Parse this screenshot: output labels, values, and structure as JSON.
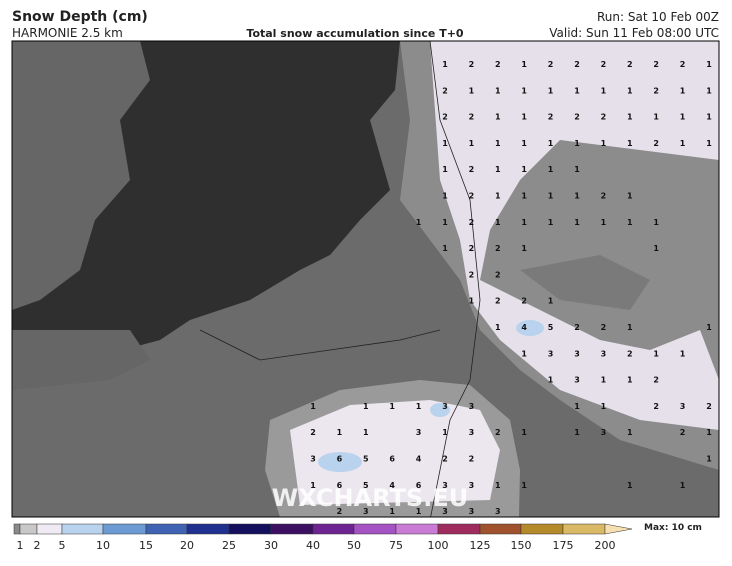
{
  "header": {
    "title": "Snow Depth (cm)",
    "model": "HARMONIE 2.5 km",
    "subtitle": "Total snow accumulation since T+0",
    "run": "Run: Sat 10 Feb 00Z",
    "valid": "Valid: Sun 11 Feb 08:00 UTC"
  },
  "map": {
    "watermark": "WXCHARTS.EU",
    "grid": [
      [
        null,
        null,
        null,
        null,
        null,
        1,
        2,
        2,
        1,
        2,
        2,
        2,
        2,
        2,
        2,
        1
      ],
      [
        null,
        null,
        null,
        null,
        null,
        2,
        1,
        1,
        1,
        1,
        1,
        1,
        1,
        2,
        1,
        1
      ],
      [
        null,
        null,
        null,
        null,
        null,
        2,
        2,
        1,
        1,
        2,
        2,
        2,
        1,
        1,
        1,
        1
      ],
      [
        null,
        null,
        null,
        null,
        null,
        1,
        1,
        1,
        1,
        1,
        1,
        1,
        1,
        2,
        1,
        1
      ],
      [
        null,
        null,
        null,
        null,
        null,
        1,
        2,
        1,
        1,
        1,
        1,
        null,
        null,
        null,
        null,
        null
      ],
      [
        null,
        null,
        null,
        null,
        null,
        1,
        2,
        1,
        1,
        1,
        1,
        2,
        1,
        null,
        null,
        null
      ],
      [
        null,
        null,
        null,
        null,
        1,
        1,
        2,
        1,
        1,
        1,
        1,
        1,
        1,
        1,
        null,
        null
      ],
      [
        null,
        null,
        null,
        null,
        null,
        1,
        2,
        2,
        1,
        null,
        null,
        null,
        null,
        1,
        null,
        null
      ],
      [
        null,
        null,
        null,
        null,
        null,
        null,
        2,
        2,
        null,
        null,
        null,
        null,
        null,
        null,
        null,
        null
      ],
      [
        null,
        null,
        null,
        null,
        null,
        null,
        1,
        2,
        2,
        1,
        null,
        null,
        null,
        null,
        null,
        null
      ],
      [
        null,
        null,
        null,
        null,
        null,
        null,
        null,
        1,
        4,
        5,
        2,
        2,
        1,
        null,
        null,
        1
      ],
      [
        null,
        null,
        null,
        null,
        null,
        null,
        null,
        null,
        1,
        3,
        3,
        3,
        2,
        1,
        1,
        null
      ],
      [
        null,
        null,
        null,
        null,
        null,
        null,
        null,
        null,
        null,
        1,
        3,
        1,
        1,
        2,
        null,
        null
      ],
      [
        1,
        null,
        1,
        1,
        1,
        3,
        3,
        null,
        null,
        null,
        1,
        1,
        null,
        2,
        3,
        2
      ],
      [
        2,
        1,
        1,
        null,
        3,
        1,
        3,
        2,
        1,
        null,
        1,
        3,
        1,
        null,
        2,
        1
      ],
      [
        3,
        6,
        5,
        6,
        4,
        2,
        2,
        null,
        null,
        null,
        null,
        null,
        null,
        null,
        null,
        1
      ],
      [
        1,
        6,
        5,
        4,
        6,
        3,
        3,
        1,
        1,
        null,
        null,
        null,
        1,
        null,
        1,
        null
      ],
      [
        null,
        2,
        3,
        1,
        1,
        3,
        3,
        3,
        null,
        null,
        null,
        null,
        null,
        null,
        null,
        null
      ]
    ]
  },
  "legend": {
    "labels": [
      1,
      2,
      5,
      10,
      15,
      20,
      25,
      30,
      40,
      50,
      75,
      100,
      125,
      150,
      175,
      200
    ],
    "max": "Max: 10 cm",
    "colors": [
      "#8a8a8a",
      "#c8c8c8",
      "#f0eaf4",
      "#b9d3ee",
      "#6b9bd2",
      "#3f62b3",
      "#20308f",
      "#14105e",
      "#3c0f62",
      "#6d2392",
      "#a552c2",
      "#c97bd6",
      "#9e2c5c",
      "#a0522d",
      "#b48a2a",
      "#d9b866",
      "#f6dfb0"
    ]
  }
}
